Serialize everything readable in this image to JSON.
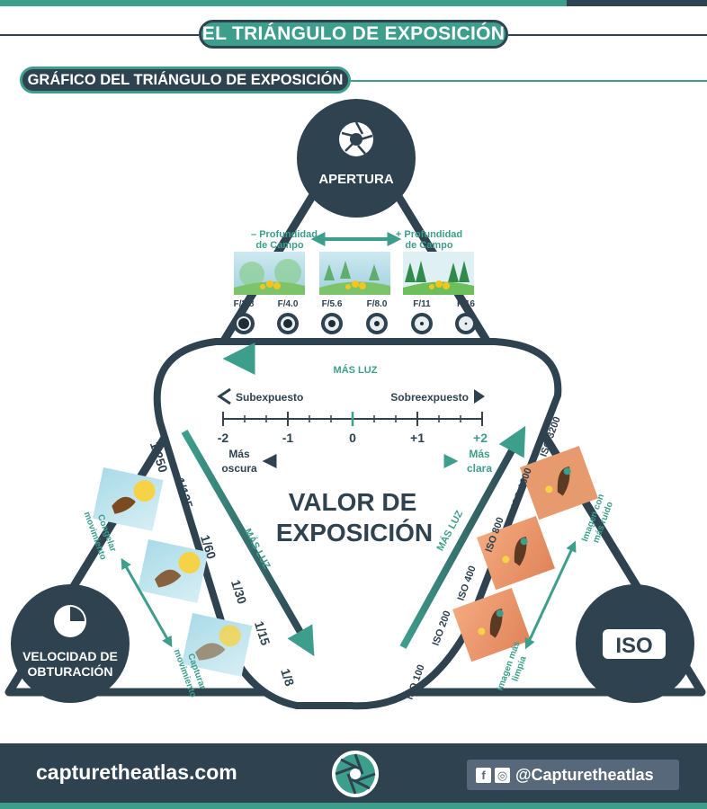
{
  "title": "EL TRIÁNGULO DE EXPOSICIÓN",
  "subtitle": "GRÁFICO DEL TRIÁNGULO DE EXPOSICIÓN",
  "aperture": {
    "label": "APERTURA",
    "less_depth": [
      "– Profundidad",
      "de Campo"
    ],
    "more_depth": [
      "+ Profundidad",
      "de Campo"
    ],
    "fstops": [
      "F/2.8",
      "F/4.0",
      "F/5.6",
      "F/8.0",
      "F/11",
      "F/16"
    ],
    "more_light": "MÁS LUZ"
  },
  "center": {
    "under": "Subexpuesto",
    "over": "Sobreexpuesto",
    "ticks": [
      "-2",
      "-1",
      "0",
      "+1",
      "+2"
    ],
    "darker": [
      "Más",
      "oscura"
    ],
    "brighter": [
      "Más",
      "clara"
    ],
    "heading": [
      "VALOR DE",
      "EXPOSICIÓN"
    ]
  },
  "shutter": {
    "label": [
      "VELOCIDAD DE",
      "OBTURACIÓN"
    ],
    "speeds": [
      "1/250",
      "1/125",
      "1/60",
      "1/30",
      "1/15",
      "1/8"
    ],
    "freeze": [
      "Congelar",
      "movimiento"
    ],
    "capture": [
      "Capturar",
      "movimiento"
    ],
    "more_light": "MÁS LUZ"
  },
  "iso": {
    "label": "ISO",
    "values": [
      "ISO 100",
      "ISO 200",
      "ISO 400",
      "ISO 800",
      "ISO 1600",
      "ISO 3200"
    ],
    "noisier": [
      "Imagen con",
      "más ruido"
    ],
    "cleaner": [
      "Imagen más",
      "limpia"
    ],
    "more_light": "MÁS LUZ"
  },
  "footer": {
    "site": "capturetheatlas.com",
    "handle": "@Capturetheatlas"
  },
  "colors": {
    "dark": "#2e4250",
    "teal": "#3d9e8c"
  }
}
